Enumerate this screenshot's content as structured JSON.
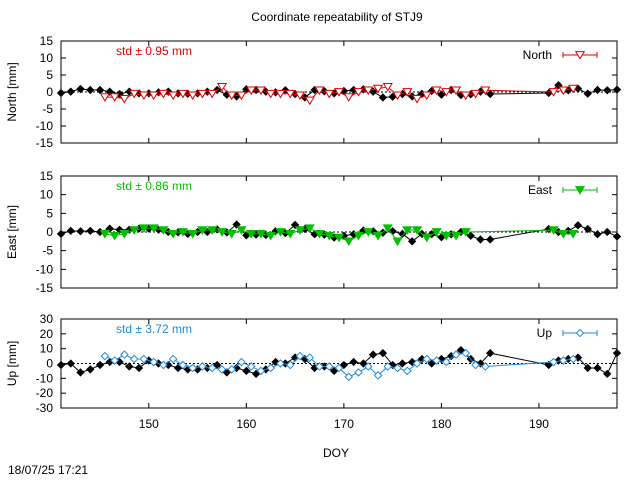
{
  "chart_data": {
    "type": "line",
    "title": "Coordinate repeatability of STJ9",
    "xlabel": "DOY",
    "xlim": [
      141,
      198
    ],
    "xticks": [
      150,
      160,
      170,
      180,
      190
    ],
    "timestamp": "18/07/25 17:21",
    "panels": [
      {
        "ylabel": "North [mm]",
        "ylim": [
          -15,
          15
        ],
        "yticks": [
          -15,
          -10,
          -5,
          0,
          5,
          10,
          15
        ],
        "std_label": "std ± 0.95 mm",
        "series": [
          {
            "name": "North",
            "color": "#e00000",
            "marker": "triangle-down-open",
            "x": [
              145.5,
              146.5,
              147.5,
              148.5,
              149.5,
              150.5,
              151.5,
              152.5,
              153.5,
              154.5,
              155.5,
              156.5,
              157.5,
              158.5,
              159.5,
              160.5,
              161.5,
              162.5,
              163.5,
              164.5,
              165.5,
              166.5,
              167.5,
              168.5,
              169.5,
              170.5,
              171.5,
              172.5,
              173.5,
              174.5,
              175.5,
              176.5,
              177.5,
              178.5,
              179.5,
              180.5,
              181.5,
              182.5,
              183.5,
              184.5,
              191.5,
              192.5,
              193.5
            ],
            "y": [
              -1.5,
              -1.5,
              -2,
              -0.5,
              -1,
              -1,
              -0.5,
              -1,
              -0.5,
              -1,
              -0.5,
              -0.5,
              1.5,
              -1,
              -1,
              0.5,
              0.5,
              -0.5,
              -0.5,
              -0.5,
              -1,
              -2.5,
              0.5,
              -0.5,
              0,
              -1.5,
              0,
              0.5,
              1,
              1.5,
              -1,
              0,
              -2,
              -1,
              0.5,
              0,
              0.5,
              -1,
              -0.5,
              0.5,
              0,
              0.5,
              1
            ]
          },
          {
            "name": "",
            "color": "#000000",
            "marker": "diamond-filled",
            "x": [
              141,
              142,
              143,
              144,
              145,
              146,
              147,
              148,
              149,
              150,
              151,
              152,
              153,
              154,
              155,
              156,
              157,
              158,
              159,
              160,
              161,
              162,
              163,
              164,
              165,
              166,
              167,
              168,
              169,
              170,
              171,
              172,
              173,
              174,
              175,
              176,
              177,
              178,
              179,
              180,
              181,
              182,
              183,
              184,
              185,
              191,
              192,
              193,
              194,
              195,
              196,
              197,
              198
            ],
            "y": [
              -0.3,
              0.1,
              0.9,
              0.6,
              0.6,
              0.1,
              -0.6,
              0.1,
              -0.4,
              -0.4,
              -0.1,
              0.1,
              -0.4,
              -0.5,
              -0.4,
              0.1,
              0.6,
              -0.8,
              -1.3,
              0.8,
              0.6,
              0.1,
              -0.1,
              0.5,
              -0.6,
              -1.6,
              0.6,
              0.2,
              -0.4,
              0.3,
              0.6,
              0.8,
              0.1,
              -1.6,
              -1.4,
              -0.6,
              -1.3,
              -0.5,
              0.3,
              -0.8,
              0.6,
              -0.9,
              -0.7,
              0.1,
              -0.6,
              -0.3,
              2.0,
              0.5,
              1.0,
              -0.5,
              0.6,
              0.5,
              0.7
            ]
          }
        ]
      },
      {
        "ylabel": "East [mm]",
        "ylim": [
          -15,
          15
        ],
        "yticks": [
          -15,
          -10,
          -5,
          0,
          5,
          10,
          15
        ],
        "std_label": "std ± 0.86 mm",
        "series": [
          {
            "name": "East",
            "color": "#00c000",
            "marker": "triangle-down-filled",
            "x": [
              145.5,
              146.5,
              147.5,
              148.5,
              149.5,
              150.5,
              151.5,
              152.5,
              153.5,
              154.5,
              155.5,
              156.5,
              157.5,
              158.5,
              159.5,
              160.5,
              161.5,
              162.5,
              163.5,
              164.5,
              165.5,
              166.5,
              167.5,
              168.5,
              169.5,
              170.5,
              171.5,
              172.5,
              173.5,
              174.5,
              175.5,
              176.5,
              177.5,
              178.5,
              179.5,
              180.5,
              181.5,
              182.5,
              191.5,
              192.5,
              193.5
            ],
            "y": [
              -0.5,
              -1,
              -0.5,
              0.5,
              1,
              1,
              0.5,
              -0.5,
              0,
              -0.5,
              0.5,
              0.5,
              0,
              -0.5,
              0.5,
              -0.5,
              -0.5,
              -1,
              0,
              -0.5,
              0.5,
              1,
              -0.5,
              -1,
              -1.5,
              -2.5,
              -1,
              0,
              -1,
              1,
              -2.5,
              0.5,
              0.5,
              -1.5,
              0,
              -1,
              -1,
              0,
              0.5,
              -0.5,
              -0.5
            ]
          },
          {
            "name": "",
            "color": "#000000",
            "marker": "diamond-filled",
            "x": [
              141,
              142,
              143,
              144,
              145,
              146,
              147,
              148,
              149,
              150,
              151,
              152,
              153,
              154,
              155,
              156,
              157,
              158,
              159,
              160,
              161,
              162,
              163,
              164,
              165,
              166,
              167,
              168,
              169,
              170,
              171,
              172,
              173,
              174,
              175,
              176,
              177,
              178,
              179,
              180,
              181,
              182,
              183,
              184,
              185,
              191,
              192,
              193,
              194,
              195,
              196,
              197,
              198
            ],
            "y": [
              -0.5,
              0.3,
              0.2,
              0.3,
              0.0,
              0.9,
              0.6,
              0.6,
              0.9,
              0.9,
              0.6,
              0.0,
              -0.1,
              -0.5,
              0.0,
              0.0,
              0.7,
              -0.1,
              2.0,
              -0.9,
              -0.7,
              -0.8,
              0.2,
              -0.3,
              1.9,
              0.8,
              -0.6,
              -0.7,
              -1.5,
              -1.0,
              -0.6,
              0.4,
              0.2,
              -0.2,
              0.2,
              -0.5,
              -2.5,
              -0.5,
              -0.6,
              -1.4,
              -0.6,
              0.0,
              -1.0,
              -2.0,
              -2.0,
              0.8,
              0.0,
              0.3,
              1.8,
              0.8,
              -0.6,
              0.0,
              -1.2
            ]
          }
        ]
      },
      {
        "ylabel": "Up [mm]",
        "ylim": [
          -30,
          30
        ],
        "yticks": [
          -30,
          -20,
          -10,
          0,
          10,
          20,
          30
        ],
        "std_label": "std ± 3.72 mm",
        "series": [
          {
            "name": "Up",
            "color": "#1e8ae0",
            "marker": "diamond-open",
            "x": [
              145.5,
              146.5,
              147.5,
              148.5,
              149.5,
              150.5,
              151.5,
              152.5,
              153.5,
              154.5,
              155.5,
              156.5,
              157.5,
              158.5,
              159.5,
              160.5,
              161.5,
              162.5,
              163.5,
              164.5,
              165.5,
              166.5,
              167.5,
              168.5,
              169.5,
              170.5,
              171.5,
              172.5,
              173.5,
              174.5,
              175.5,
              176.5,
              177.5,
              178.5,
              179.5,
              180.5,
              181.5,
              182.5,
              183.5,
              184.5,
              191.5,
              192.5,
              193.5
            ],
            "y": [
              5,
              2,
              6,
              3,
              3,
              1,
              -1,
              3,
              -1,
              -3,
              -2,
              -3,
              -4,
              -4,
              1,
              -2,
              -5,
              -3,
              0,
              -1,
              5,
              4,
              -2,
              -2,
              -3,
              -9,
              -6,
              -2,
              -8,
              -2,
              -3,
              -5,
              0,
              3,
              2,
              1,
              6,
              7,
              -1,
              -2,
              1,
              2,
              3
            ]
          },
          {
            "name": "",
            "color": "#000000",
            "marker": "diamond-filled",
            "x": [
              141,
              142,
              143,
              144,
              145,
              146,
              147,
              148,
              149,
              150,
              151,
              152,
              153,
              154,
              155,
              156,
              157,
              158,
              159,
              160,
              161,
              162,
              163,
              164,
              165,
              166,
              167,
              168,
              169,
              170,
              171,
              172,
              173,
              174,
              175,
              176,
              177,
              178,
              179,
              180,
              181,
              182,
              183,
              184,
              185,
              191,
              192,
              193,
              194,
              195,
              196,
              197,
              198
            ],
            "y": [
              -1,
              0,
              -6,
              -4,
              -1,
              1,
              1,
              -2,
              -3,
              2,
              0,
              -1,
              -3,
              -4,
              -4,
              -3,
              -1,
              -6,
              -3,
              -5,
              -7,
              -4,
              1,
              0,
              4,
              3,
              -3,
              -2,
              -5,
              -1,
              1,
              0,
              6,
              7,
              -1,
              0,
              1,
              3,
              0,
              3,
              5,
              9,
              3,
              0,
              7,
              -1,
              2,
              3,
              4,
              -3,
              -3,
              -7,
              7
            ]
          }
        ]
      }
    ]
  }
}
